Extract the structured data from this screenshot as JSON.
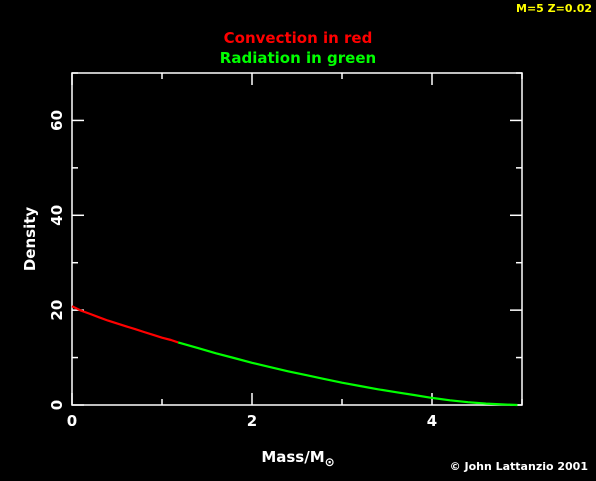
{
  "model_label": "M=5 Z=0.02",
  "credit": "© John Lattanzio 2001",
  "colors": {
    "background": "#000000",
    "axes": "#ffffff",
    "convection": "#ff0000",
    "radiation": "#00ff00",
    "model_label": "#ffff00"
  },
  "chart_data": {
    "type": "line",
    "title": "Convection in red",
    "subtitle": "Radiation in green",
    "xlabel": "Mass/M",
    "xlabel_symbol": "⊙",
    "ylabel": "Density",
    "xlim": [
      0,
      5
    ],
    "ylim": [
      0,
      70
    ],
    "x_ticks_major": [
      0,
      2,
      4
    ],
    "x_ticks_minor": [
      1,
      3,
      5
    ],
    "y_ticks_major": [
      0,
      20,
      40,
      60
    ],
    "y_ticks_minor": [
      10,
      30,
      50,
      70
    ],
    "x_tick_labels": [
      "0",
      "2",
      "4"
    ],
    "y_tick_labels": [
      "0",
      "20",
      "40",
      "60"
    ],
    "grid": false,
    "series": [
      {
        "segment": "convection",
        "color": "#ff0000",
        "x": [
          0.0,
          0.1,
          0.2,
          0.3,
          0.4,
          0.5,
          0.6,
          0.7,
          0.8,
          0.9,
          1.0,
          1.1,
          1.18
        ],
        "y": [
          20.8,
          19.9,
          19.2,
          18.5,
          17.8,
          17.2,
          16.6,
          16.0,
          15.4,
          14.8,
          14.2,
          13.7,
          13.2
        ]
      },
      {
        "segment": "radiation",
        "color": "#00ff00",
        "x": [
          1.18,
          1.4,
          1.6,
          1.8,
          2.0,
          2.2,
          2.4,
          2.6,
          2.8,
          3.0,
          3.2,
          3.4,
          3.6,
          3.8,
          4.0,
          4.2,
          4.4,
          4.6,
          4.8,
          4.95
        ],
        "y": [
          13.2,
          12.0,
          10.9,
          9.9,
          8.9,
          8.0,
          7.1,
          6.3,
          5.5,
          4.7,
          4.0,
          3.3,
          2.7,
          2.1,
          1.5,
          1.0,
          0.6,
          0.3,
          0.1,
          0.0
        ]
      }
    ]
  }
}
